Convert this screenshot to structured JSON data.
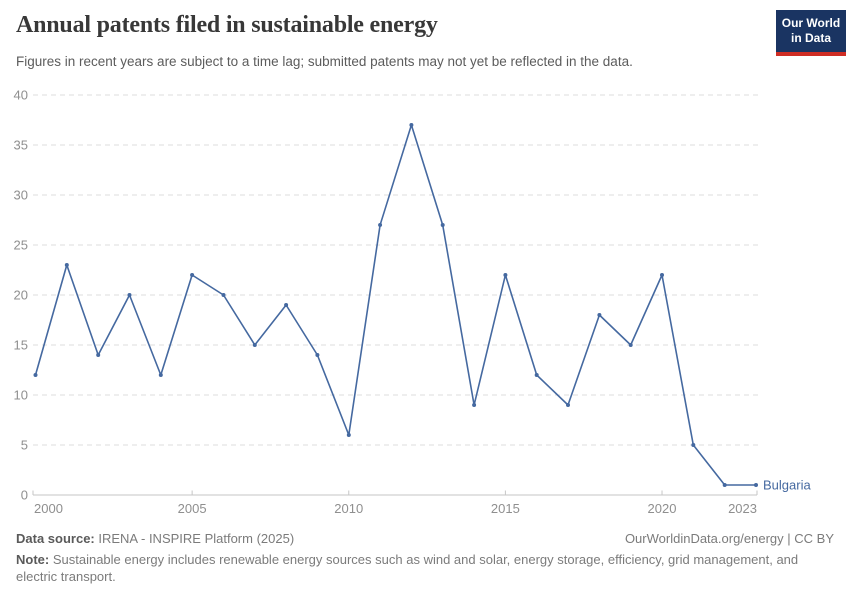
{
  "header": {
    "title": "Annual patents filed in sustainable energy",
    "subtitle": "Figures in recent years are subject to a time lag; submitted patents may not yet be reflected in the data.",
    "logo": {
      "line1": "Our World",
      "line2": "in Data"
    }
  },
  "chart_data": {
    "type": "line",
    "title": "Annual patents filed in sustainable energy",
    "xlabel": "",
    "ylabel": "",
    "x": [
      2000,
      2001,
      2002,
      2003,
      2004,
      2005,
      2006,
      2007,
      2008,
      2009,
      2010,
      2011,
      2012,
      2013,
      2014,
      2015,
      2016,
      2017,
      2018,
      2019,
      2020,
      2021,
      2022,
      2023
    ],
    "series": [
      {
        "name": "Bulgaria",
        "values": [
          12,
          23,
          14,
          20,
          12,
          22,
          20,
          15,
          19,
          14,
          6,
          27,
          37,
          27,
          9,
          22,
          12,
          9,
          18,
          15,
          22,
          5,
          1,
          1
        ]
      }
    ],
    "xlim": [
      2000,
      2023
    ],
    "ylim": [
      0,
      40
    ],
    "y_ticks": [
      0,
      5,
      10,
      15,
      20,
      25,
      30,
      35,
      40
    ],
    "x_ticks": [
      2000,
      2005,
      2010,
      2015,
      2020,
      2023
    ],
    "grid": "horizontal-dashed",
    "legend": "end-of-line-label"
  },
  "colors": {
    "line": "#4569a0",
    "grid": "#dddddd",
    "axis": "#c6c6c6",
    "tick_label": "#8f8f8f",
    "title": "#383838",
    "subtitle": "#5c5c5c",
    "footer_text": "#7b7b7b",
    "logo_bg": "#1a3462",
    "logo_red": "#cf2d24"
  },
  "footer": {
    "datasource_label": "Data source:",
    "datasource_value": "IRENA - INSPIRE Platform (2025)",
    "link": "OurWorldinData.org/energy | CC BY",
    "note_label": "Note:",
    "note_value": "Sustainable energy includes renewable energy sources such as wind and solar, energy storage, efficiency, grid management, and electric transport."
  }
}
